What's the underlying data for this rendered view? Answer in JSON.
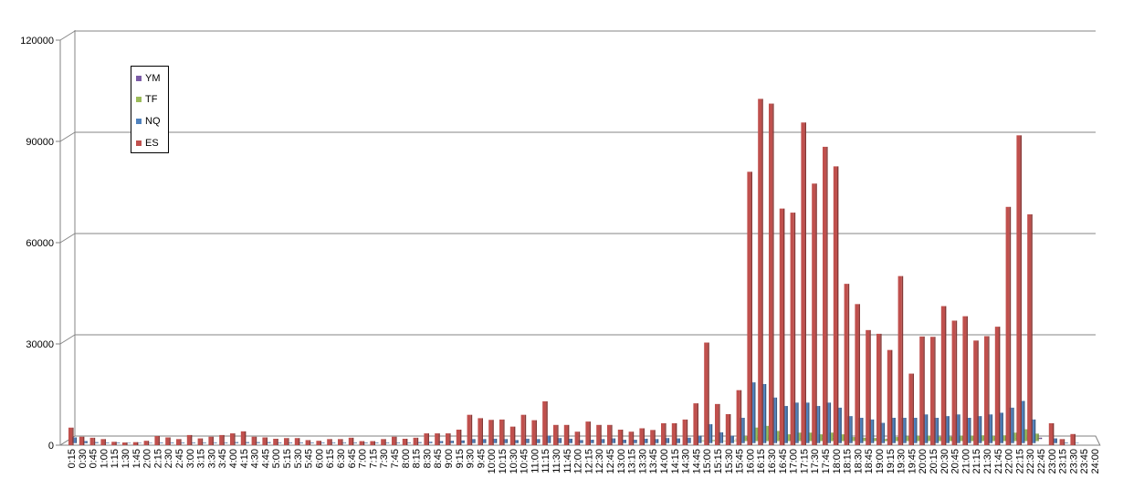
{
  "chart_data": {
    "type": "bar",
    "title": "",
    "xlabel": "",
    "ylabel": "",
    "ylim": [
      0,
      120000
    ],
    "y_ticks": [
      "0",
      "30000",
      "60000",
      "90000",
      "120000"
    ],
    "grid": true,
    "legend_placement": "top-left",
    "categories": [
      "0:15",
      "0:30",
      "0:45",
      "1:00",
      "1:15",
      "1:30",
      "1:45",
      "2:00",
      "2:15",
      "2:30",
      "2:45",
      "3:00",
      "3:15",
      "3:30",
      "3:45",
      "4:00",
      "4:15",
      "4:30",
      "4:45",
      "5:00",
      "5:15",
      "5:30",
      "5:45",
      "6:00",
      "6:15",
      "6:30",
      "6:45",
      "7:00",
      "7:15",
      "7:30",
      "7:45",
      "8:00",
      "8:15",
      "8:30",
      "8:45",
      "9:00",
      "9:15",
      "9:30",
      "9:45",
      "10:00",
      "10:15",
      "10:30",
      "10:45",
      "11:00",
      "11:15",
      "11:30",
      "11:45",
      "12:00",
      "12:15",
      "12:30",
      "12:45",
      "13:00",
      "13:15",
      "13:30",
      "13:45",
      "14:00",
      "14:15",
      "14:30",
      "14:45",
      "15:00",
      "15:15",
      "15:30",
      "15:45",
      "16:00",
      "16:15",
      "16:30",
      "16:45",
      "17:00",
      "17:15",
      "17:30",
      "17:45",
      "18:00",
      "18:15",
      "18:30",
      "18:45",
      "19:00",
      "19:15",
      "19:30",
      "19:45",
      "20:00",
      "20:15",
      "20:30",
      "20:45",
      "21:00",
      "21:15",
      "21:30",
      "21:45",
      "22:00",
      "22:15",
      "22:30",
      "22:45",
      "23:00",
      "23:15",
      "23:30",
      "23:45",
      "24:00"
    ],
    "series": [
      {
        "name": "YM",
        "color": "#7B5BA6",
        "values": [
          0,
          0,
          0,
          0,
          0,
          0,
          0,
          0,
          0,
          0,
          0,
          0,
          0,
          0,
          0,
          0,
          0,
          0,
          0,
          0,
          0,
          0,
          0,
          0,
          0,
          0,
          0,
          0,
          0,
          0,
          0,
          0,
          0,
          0,
          0,
          0,
          0,
          0,
          0,
          0,
          0,
          0,
          0,
          0,
          0,
          0,
          0,
          0,
          0,
          0,
          0,
          0,
          0,
          0,
          0,
          0,
          0,
          0,
          0,
          0,
          0,
          100,
          300,
          600,
          500,
          300,
          300,
          400,
          300,
          300,
          300,
          300,
          200,
          200,
          200,
          100,
          200,
          200,
          200,
          200,
          200,
          200,
          200,
          200,
          200,
          200,
          300,
          400,
          500,
          400,
          0,
          0,
          0,
          0,
          0,
          0
        ]
      },
      {
        "name": "TF",
        "color": "#9BBB59",
        "values": [
          0,
          0,
          0,
          0,
          0,
          0,
          0,
          0,
          0,
          0,
          0,
          0,
          0,
          0,
          0,
          0,
          0,
          0,
          0,
          0,
          0,
          0,
          0,
          0,
          0,
          0,
          0,
          0,
          0,
          0,
          0,
          0,
          0,
          0,
          0,
          0,
          0,
          0,
          0,
          0,
          0,
          0,
          0,
          0,
          0,
          0,
          0,
          0,
          0,
          0,
          0,
          0,
          0,
          0,
          0,
          0,
          0,
          0,
          200,
          300,
          100,
          200,
          1500,
          4000,
          4500,
          3000,
          2000,
          2500,
          2500,
          2000,
          2500,
          2000,
          1200,
          1000,
          900,
          600,
          1200,
          1400,
          1500,
          1600,
          1300,
          1300,
          1600,
          1600,
          1700,
          1500,
          1700,
          2500,
          3500,
          2200,
          0,
          0,
          0,
          0,
          0,
          0
        ]
      },
      {
        "name": "NQ",
        "color": "#4F81BD",
        "values": [
          1700,
          600,
          300,
          200,
          200,
          100,
          100,
          100,
          200,
          200,
          200,
          200,
          200,
          200,
          200,
          300,
          300,
          300,
          300,
          200,
          200,
          200,
          200,
          200,
          200,
          200,
          200,
          200,
          200,
          200,
          200,
          200,
          300,
          400,
          600,
          700,
          800,
          1200,
          1200,
          1300,
          1200,
          900,
          1300,
          1200,
          2200,
          1500,
          1300,
          900,
          1000,
          1200,
          1400,
          1000,
          1000,
          1300,
          1200,
          1500,
          1400,
          1600,
          2200,
          5600,
          3200,
          2200,
          7500,
          18000,
          17500,
          13500,
          11000,
          12000,
          12000,
          11000,
          12000,
          10500,
          8000,
          7500,
          7000,
          6000,
          7500,
          7500,
          7500,
          8500,
          7500,
          8000,
          8500,
          7500,
          8000,
          8500,
          9000,
          10500,
          12500,
          7000,
          0,
          1400,
          200,
          100,
          0,
          0
        ]
      },
      {
        "name": "ES",
        "color": "#C0504D",
        "values": [
          5200,
          2500,
          2200,
          1800,
          1000,
          800,
          900,
          1300,
          2700,
          2300,
          1800,
          3000,
          2000,
          2500,
          3000,
          3500,
          4100,
          2500,
          2300,
          1900,
          2100,
          2100,
          1500,
          1300,
          1800,
          1800,
          2200,
          1200,
          1200,
          1800,
          2500,
          1900,
          2200,
          3500,
          3500,
          3500,
          4600,
          9000,
          8000,
          7500,
          7600,
          5500,
          9000,
          7400,
          13000,
          6000,
          6000,
          4000,
          7000,
          6000,
          6000,
          4600,
          4000,
          5000,
          4500,
          6500,
          6500,
          7600,
          12400,
          30400,
          12200,
          9200,
          16300,
          81000,
          102600,
          101200,
          70100,
          68900,
          95600,
          77500,
          88400,
          82600,
          47800,
          41800,
          34100,
          33000,
          28200,
          50100,
          21200,
          32200,
          32100,
          41200,
          36900,
          38200,
          31000,
          32300,
          35100,
          70600,
          91800,
          68400,
          0,
          6500,
          1800,
          3300,
          0,
          0
        ]
      }
    ]
  },
  "legend": {
    "items": [
      {
        "label": "YM",
        "color": "#7B5BA6"
      },
      {
        "label": "TF",
        "color": "#9BBB59"
      },
      {
        "label": "NQ",
        "color": "#4F81BD"
      },
      {
        "label": "ES",
        "color": "#C0504D"
      }
    ]
  }
}
